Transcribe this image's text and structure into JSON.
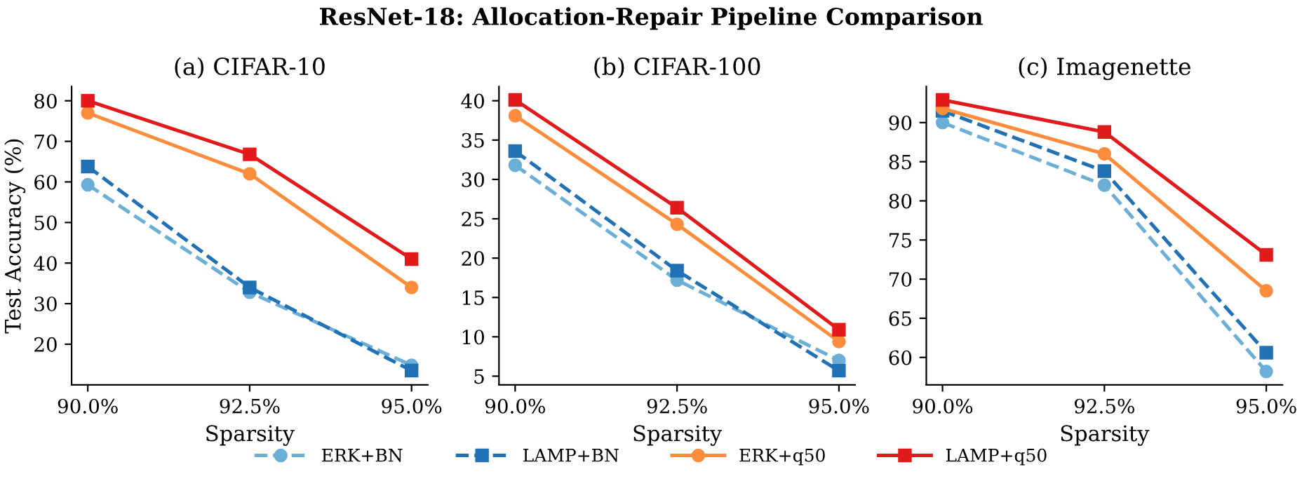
{
  "chart_data": [
    {
      "type": "line",
      "title": "(a) CIFAR-10",
      "annotations": [
        "ResNet-18: Allocation-Repair Pipeline Comparison"
      ],
      "xlabel": "Sparsity",
      "ylabel": "Test Accuracy (%)",
      "x": [
        90,
        92.5,
        95
      ],
      "xlim": [
        89.75,
        95.25
      ],
      "xticks": [
        {
          "value": 90,
          "label": "90.0%"
        },
        {
          "value": 92.5,
          "label": "92.5%"
        },
        {
          "value": 95,
          "label": "95.0%"
        }
      ],
      "ylim": [
        10,
        83.5
      ],
      "yticks": [
        20,
        30,
        40,
        50,
        60,
        70,
        80
      ],
      "grid": false,
      "legend": "bottom",
      "series": [
        {
          "name": "ERK+BN",
          "color": "#6baed6",
          "marker": "circle",
          "line_style": "dashed",
          "values": [
            59.3,
            32.8,
            14.8
          ]
        },
        {
          "name": "LAMP+BN",
          "color": "#2171b5",
          "marker": "square",
          "line_style": "dashed",
          "values": [
            63.8,
            34.0,
            13.5
          ]
        },
        {
          "name": "ERK+q50",
          "color": "#fd8d3c",
          "marker": "circle",
          "line_style": "solid",
          "values": [
            77.0,
            62.0,
            34.0
          ]
        },
        {
          "name": "LAMP+q50",
          "color": "#e31a1c",
          "marker": "square",
          "line_style": "solid",
          "values": [
            80.0,
            66.8,
            41.0
          ]
        }
      ]
    },
    {
      "type": "line",
      "title": "(b) CIFAR-100",
      "xlabel": "Sparsity",
      "x": [
        90,
        92.5,
        95
      ],
      "xlim": [
        89.75,
        95.25
      ],
      "xticks": [
        {
          "value": 90,
          "label": "90.0%"
        },
        {
          "value": 92.5,
          "label": "92.5%"
        },
        {
          "value": 95,
          "label": "95.0%"
        }
      ],
      "ylim": [
        3.9,
        41.8
      ],
      "yticks": [
        5,
        10,
        15,
        20,
        25,
        30,
        35,
        40
      ],
      "grid": false,
      "legend": "bottom",
      "series": [
        {
          "color": "#6baed6",
          "marker": "circle",
          "line_style": "dashed",
          "values": [
            31.8,
            17.2,
            7.0
          ]
        },
        {
          "color": "#2171b5",
          "marker": "square",
          "line_style": "dashed",
          "values": [
            33.6,
            18.4,
            5.7
          ]
        },
        {
          "color": "#fd8d3c",
          "marker": "circle",
          "line_style": "solid",
          "values": [
            38.1,
            24.3,
            9.4
          ]
        },
        {
          "color": "#e31a1c",
          "marker": "square",
          "line_style": "solid",
          "values": [
            40.1,
            26.4,
            10.9
          ]
        }
      ]
    },
    {
      "type": "line",
      "title": "(c) Imagenette",
      "xlabel": "Sparsity",
      "x": [
        90,
        92.5,
        95
      ],
      "xlim": [
        89.75,
        95.25
      ],
      "xticks": [
        {
          "value": 90,
          "label": "90.0%"
        },
        {
          "value": 92.5,
          "label": "92.5%"
        },
        {
          "value": 95,
          "label": "95.0%"
        }
      ],
      "ylim": [
        56.5,
        94.6
      ],
      "yticks": [
        60,
        65,
        70,
        75,
        80,
        85,
        90
      ],
      "grid": false,
      "legend": "bottom",
      "series": [
        {
          "color": "#6baed6",
          "marker": "circle",
          "line_style": "dashed",
          "values": [
            90.0,
            82.0,
            58.2
          ]
        },
        {
          "color": "#2171b5",
          "marker": "square",
          "line_style": "dashed",
          "values": [
            91.5,
            83.8,
            60.6
          ]
        },
        {
          "color": "#fd8d3c",
          "marker": "circle",
          "line_style": "solid",
          "values": [
            91.8,
            86.0,
            68.5
          ]
        },
        {
          "color": "#e31a1c",
          "marker": "square",
          "line_style": "solid",
          "values": [
            92.9,
            88.8,
            73.1
          ]
        }
      ]
    }
  ]
}
